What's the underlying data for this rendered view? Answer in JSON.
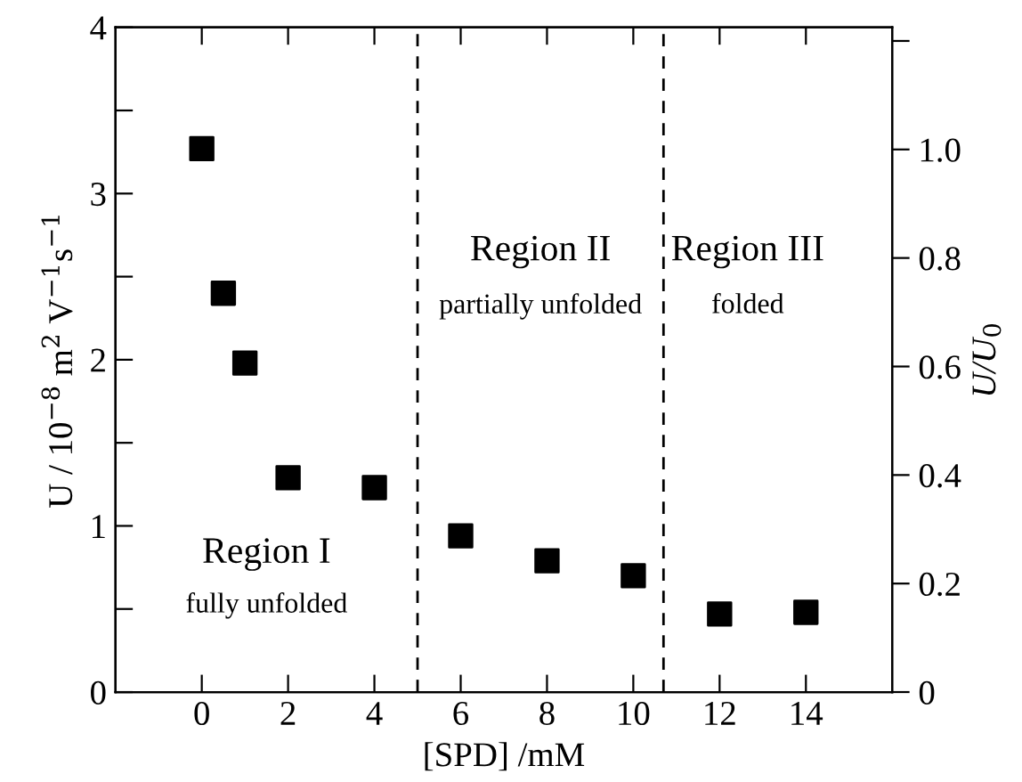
{
  "chart_data": {
    "type": "scatter",
    "xlabel": "[SPD] /mM",
    "ylabel": "U / 10$^{−8}$ m$^{2}$ V$^{−1}$s$^{−1}$",
    "y2label": "U/U$_{0}$",
    "x": [
      0,
      0.5,
      1,
      2,
      4,
      6,
      8,
      10,
      12,
      14
    ],
    "series": [
      {
        "color": "#000000",
        "values": [
          3.27,
          2.4,
          1.98,
          1.29,
          1.23,
          0.94,
          0.79,
          0.7,
          0.47,
          0.48
        ]
      }
    ],
    "marker": "square",
    "grid": false,
    "xlim": [
      -2,
      16
    ],
    "xticks": [
      0,
      2,
      4,
      6,
      8,
      10,
      12,
      14
    ],
    "ylim": [
      0,
      4
    ],
    "yticks": [
      0,
      {
        "value": 0.5,
        "label": null
      },
      1,
      {
        "value": 1.5,
        "label": null
      },
      2,
      {
        "value": 2.5,
        "label": null
      },
      3,
      {
        "value": 3.5,
        "label": null
      },
      4
    ],
    "y2lim": [
      0,
      1.225
    ],
    "y2ticks": [
      0,
      0.2,
      0.4,
      0.6,
      0.8,
      {
        "value": 1,
        "label": "1.0"
      },
      {
        "value": 1.2,
        "label": null
      }
    ],
    "ref_lines": [
      {
        "axis": "x",
        "value": 5,
        "line_style": "dashed",
        "color": "#000000"
      },
      {
        "axis": "x",
        "value": 10.7,
        "line_style": "dashed",
        "color": "#000000"
      }
    ],
    "annotations": [
      "Region I",
      "fully unfolded",
      "Region II",
      "partially unfolded",
      "Region III",
      "folded"
    ]
  }
}
